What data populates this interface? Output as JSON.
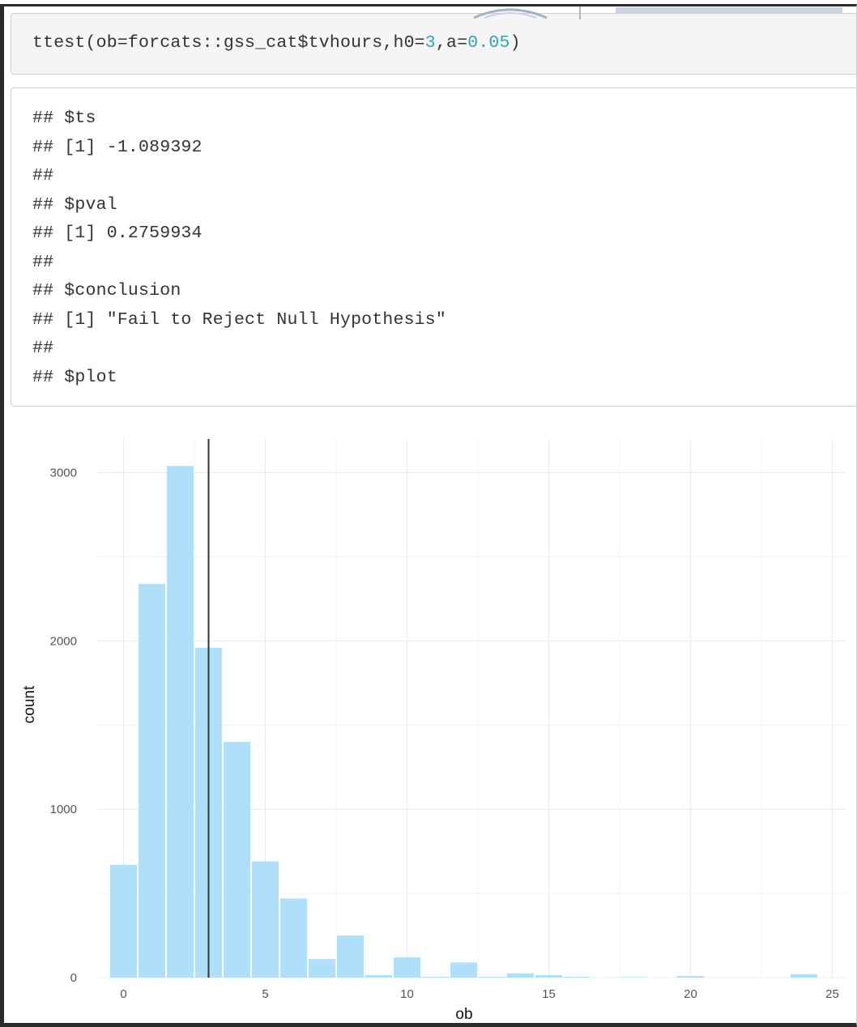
{
  "code_input": {
    "prefix": "ttest(ob=forcats::gss_cat$tvhours,h0=",
    "h0_value": "3",
    "mid": ",a=",
    "a_value": "0.05",
    "suffix": ")"
  },
  "output_lines": [
    "## $ts",
    "## [1] -1.089392",
    "##",
    "## $pval",
    "## [1] 0.2759934",
    "##",
    "## $conclusion",
    "## [1] \"Fail to Reject Null Hypothesis\"",
    "##",
    "## $plot"
  ],
  "colors": {
    "bar_fill": "#b0dffa",
    "vline": "#333333",
    "grid": "#ebebeb",
    "number_literal": "#2aa7b8"
  },
  "chart_data": {
    "type": "bar",
    "xlabel": "ob",
    "ylabel": "count",
    "xlim": [
      -0.9,
      25.5
    ],
    "ylim": [
      0,
      3200
    ],
    "x_ticks": [
      0,
      5,
      10,
      15,
      20,
      25
    ],
    "y_ticks": [
      0,
      1000,
      2000,
      3000
    ],
    "grid": true,
    "vline": 3,
    "bin_width": 1,
    "x": [
      0,
      1,
      2,
      3,
      4,
      5,
      6,
      7,
      8,
      9,
      10,
      11,
      12,
      13,
      14,
      15,
      16,
      17,
      18,
      19,
      20,
      21,
      22,
      23,
      24
    ],
    "values": [
      670,
      2340,
      3040,
      1960,
      1400,
      690,
      470,
      110,
      250,
      15,
      120,
      5,
      90,
      5,
      25,
      15,
      5,
      0,
      3,
      0,
      10,
      0,
      0,
      0,
      20
    ]
  }
}
